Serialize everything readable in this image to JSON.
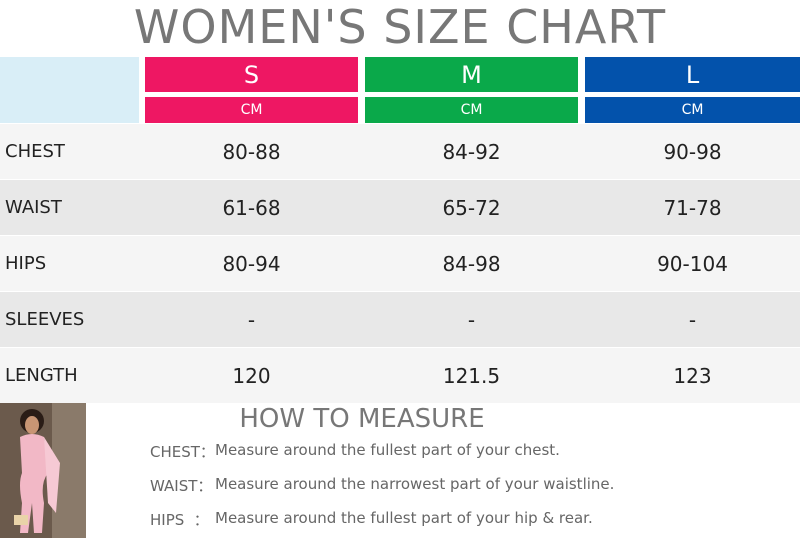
{
  "header": {
    "title": "WOMEN'S SIZE CHART"
  },
  "table": {
    "columns": [
      {
        "size": "S",
        "unit": "CM",
        "color": "#ee1763"
      },
      {
        "size": "M",
        "unit": "CM",
        "color": "#0aa94a"
      },
      {
        "size": "L",
        "unit": "CM",
        "color": "#0352ab"
      }
    ],
    "rows": [
      {
        "label": "CHEST",
        "values": [
          "80-88",
          "84-92",
          "90-98"
        ]
      },
      {
        "label": "WAIST",
        "values": [
          "61-68",
          "65-72",
          "71-78"
        ]
      },
      {
        "label": "HIPS",
        "values": [
          "80-94",
          "84-98",
          "90-104"
        ]
      },
      {
        "label": "SLEEVES",
        "values": [
          "-",
          "-",
          "-"
        ]
      },
      {
        "label": "LENGTH",
        "values": [
          "120",
          "121.5",
          "123"
        ]
      }
    ]
  },
  "measure": {
    "title": "HOW TO MEASURE",
    "items": [
      {
        "label": "CHEST：",
        "text": "Measure around the fullest part of your chest."
      },
      {
        "label": "WAIST：",
        "text": "Measure around the narrowest part of your waistline."
      },
      {
        "label": "HIPS  ：",
        "text": "Measure around the fullest part of your hip & rear."
      }
    ]
  }
}
